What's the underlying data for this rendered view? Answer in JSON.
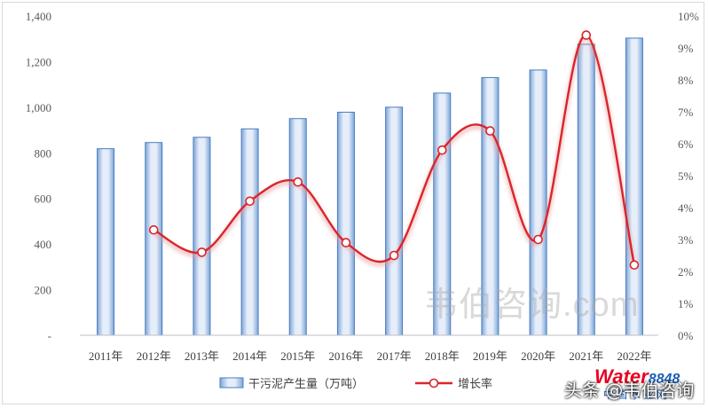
{
  "chart_data": {
    "type": "bar+line",
    "categories": [
      "2011年",
      "2012年",
      "2013年",
      "2014年",
      "2015年",
      "2016年",
      "2017年",
      "2018年",
      "2019年",
      "2020年",
      "2021年",
      "2022年"
    ],
    "series": [
      {
        "name": "干污泥产生量（万吨）",
        "type": "bar",
        "axis": "left",
        "values": [
          818,
          845,
          868,
          905,
          950,
          978,
          1000,
          1062,
          1130,
          1163,
          1276,
          1303
        ]
      },
      {
        "name": "增长率",
        "type": "line",
        "axis": "right",
        "values": [
          null,
          3.3,
          2.6,
          4.2,
          4.8,
          2.9,
          2.5,
          5.8,
          6.4,
          3.0,
          9.4,
          2.2
        ]
      }
    ],
    "y_left": {
      "ylim": [
        0,
        1400
      ],
      "ticks": [
        "-",
        "200",
        "400",
        "600",
        "800",
        "1,000",
        "1,200",
        "1,400"
      ]
    },
    "y_right": {
      "ylim": [
        0,
        10
      ],
      "ticks": [
        "0%",
        "1%",
        "2%",
        "3%",
        "4%",
        "5%",
        "6%",
        "7%",
        "8%",
        "9%",
        "10%"
      ]
    },
    "grid": false,
    "legend": "bottom",
    "colors": {
      "bar_fill": "#bcd3ee",
      "bar_edge": "#4a7cc0",
      "line": "#d9262b",
      "marker_fill": "#ffffff"
    }
  },
  "watermarks": {
    "center": "韦伯咨询.com",
    "brand_text": "Water",
    "brand_num": "8848",
    "brand_sub": "中国水业网",
    "platform": "头条 @韦伯咨询"
  }
}
